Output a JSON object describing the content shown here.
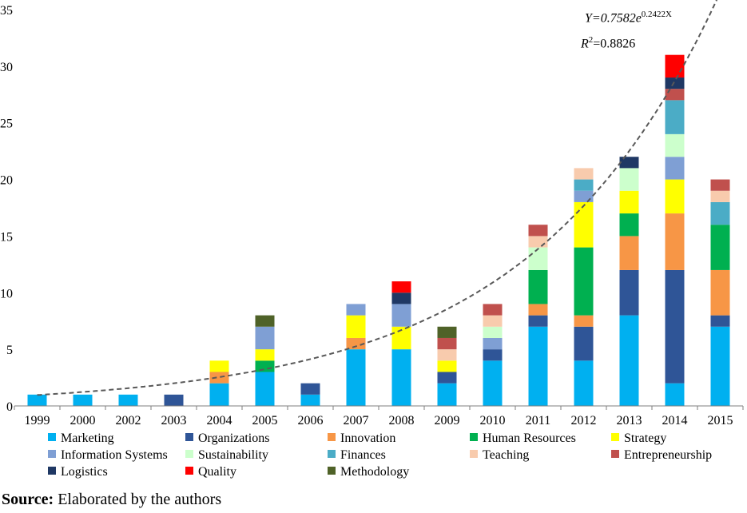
{
  "chart_data": {
    "type": "bar",
    "stacked": true,
    "categories": [
      "1999",
      "2000",
      "2002",
      "2003",
      "2004",
      "2005",
      "2006",
      "2007",
      "2008",
      "2009",
      "2010",
      "2011",
      "2012",
      "2013",
      "2014",
      "2015"
    ],
    "ylim": [
      0,
      35
    ],
    "yticks": [
      0,
      5,
      10,
      15,
      20,
      25,
      30,
      35
    ],
    "grid": false,
    "legend_position": "bottom",
    "series": [
      {
        "name": "Marketing",
        "color": "#00B0F0",
        "values": [
          1,
          1,
          1,
          0,
          2,
          3,
          1,
          5,
          5,
          2,
          4,
          7,
          4,
          8,
          2,
          7
        ]
      },
      {
        "name": "Organizations",
        "color": "#2F5597",
        "values": [
          0,
          0,
          0,
          1,
          0,
          0,
          1,
          0,
          0,
          1,
          1,
          1,
          3,
          4,
          10,
          1
        ]
      },
      {
        "name": "Innovation",
        "color": "#F79646",
        "values": [
          0,
          0,
          0,
          0,
          1,
          0,
          0,
          1,
          0,
          0,
          0,
          1,
          1,
          3,
          5,
          4
        ]
      },
      {
        "name": "Human Resources",
        "color": "#00B050",
        "values": [
          0,
          0,
          0,
          0,
          0,
          1,
          0,
          0,
          0,
          0,
          0,
          3,
          6,
          2,
          0,
          4
        ]
      },
      {
        "name": "Strategy",
        "color": "#FFFF00",
        "values": [
          0,
          0,
          0,
          0,
          1,
          1,
          0,
          2,
          2,
          1,
          0,
          0,
          4,
          2,
          3,
          0
        ]
      },
      {
        "name": "Information Systems",
        "color": "#7F9FD4",
        "values": [
          0,
          0,
          0,
          0,
          0,
          2,
          0,
          1,
          2,
          0,
          1,
          0,
          1,
          0,
          2,
          0
        ]
      },
      {
        "name": "Sustainability",
        "color": "#CCFFCC",
        "values": [
          0,
          0,
          0,
          0,
          0,
          0,
          0,
          0,
          0,
          0,
          1,
          2,
          0,
          2,
          2,
          0
        ]
      },
      {
        "name": "Finances",
        "color": "#4BACC6",
        "values": [
          0,
          0,
          0,
          0,
          0,
          0,
          0,
          0,
          0,
          0,
          0,
          0,
          1,
          0,
          3,
          2
        ]
      },
      {
        "name": "Teaching",
        "color": "#F8CBAD",
        "values": [
          0,
          0,
          0,
          0,
          0,
          0,
          0,
          0,
          0,
          1,
          1,
          1,
          1,
          0,
          0,
          1
        ]
      },
      {
        "name": "Entrepreneurship",
        "color": "#C0504D",
        "values": [
          0,
          0,
          0,
          0,
          0,
          0,
          0,
          0,
          0,
          1,
          1,
          1,
          0,
          0,
          1,
          1
        ]
      },
      {
        "name": "Logistics",
        "color": "#1F3864",
        "values": [
          0,
          0,
          0,
          0,
          0,
          0,
          0,
          0,
          1,
          0,
          0,
          0,
          0,
          1,
          1,
          0
        ]
      },
      {
        "name": "Quality",
        "color": "#FF0000",
        "values": [
          0,
          0,
          0,
          0,
          0,
          0,
          0,
          0,
          1,
          0,
          0,
          0,
          0,
          0,
          2,
          0
        ]
      },
      {
        "name": "Methodology",
        "color": "#4F6228",
        "values": [
          0,
          0,
          0,
          0,
          0,
          1,
          0,
          0,
          0,
          1,
          0,
          0,
          0,
          0,
          0,
          0
        ]
      }
    ],
    "trendline": {
      "type": "exponential",
      "a": 0.7582,
      "b": 0.2422,
      "equation_prefix": "Y=0.7582e",
      "equation_exponent": "0.2422X",
      "r2_prefix": "R",
      "r2_sup": "2",
      "r2_value": "=0.8826",
      "color": "#595959"
    }
  },
  "source": {
    "label": "Source:",
    "text": " Elaborated by the authors"
  }
}
